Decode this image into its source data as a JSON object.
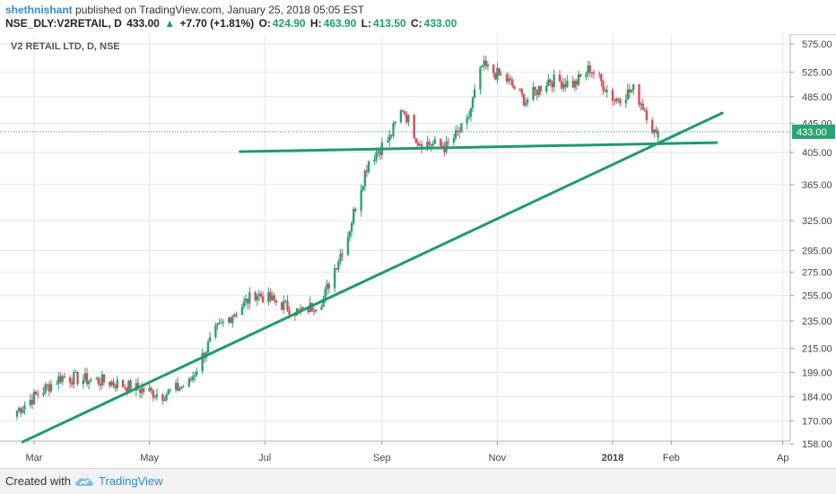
{
  "header": {
    "author": "shethnishant",
    "published_text": "published on TradingView.com, January 25, 2018 05:05 EST",
    "symbol": "NSE_DLY:V2RETAIL, D",
    "last": "433.00",
    "change_arrow": "▲",
    "change": "+7.70 (+1.81%)",
    "open_label": "O:",
    "open": "424.90",
    "high_label": "H:",
    "high": "463.90",
    "low_label": "L:",
    "low": "413.50",
    "close_label": "C:",
    "close": "433.00"
  },
  "footer": {
    "created_with": "Created with",
    "brand": "TradingView",
    "logo_icon": "tradingview-cloud-icon"
  },
  "colors": {
    "up": "#2aa272",
    "down": "#dd4b5b",
    "trendline": "#1f9a72",
    "price_tag": "#2aa272",
    "grid": "#e6e6e6"
  },
  "chart_data": {
    "type": "candlestick",
    "title": "V2 RETAIL LTD, D, NSE",
    "x_tick_labels": [
      "Mar",
      "May",
      "Jul",
      "Sep",
      "Nov",
      "2018",
      "Feb",
      "Ap"
    ],
    "y_tick_labels": [
      "158.00",
      "170.00",
      "184.00",
      "199.00",
      "215.00",
      "235.00",
      "255.00",
      "275.00",
      "295.00",
      "325.00",
      "365.00",
      "405.00",
      "445.00",
      "485.00",
      "525.00",
      "575.00"
    ],
    "y_scale": "log",
    "last_price_label": "433.00",
    "last_price": 433.0,
    "x_start_date": "2017-02-17",
    "x_end_date": "2018-03-28",
    "key_closes": [
      {
        "date": "2017-02-20",
        "close": 176
      },
      {
        "date": "2017-03-15",
        "close": 196
      },
      {
        "date": "2017-04-10",
        "close": 193
      },
      {
        "date": "2017-05-08",
        "close": 185
      },
      {
        "date": "2017-05-22",
        "close": 192
      },
      {
        "date": "2017-06-05",
        "close": 227
      },
      {
        "date": "2017-06-26",
        "close": 257
      },
      {
        "date": "2017-07-20",
        "close": 241
      },
      {
        "date": "2017-08-01",
        "close": 252
      },
      {
        "date": "2017-08-14",
        "close": 310
      },
      {
        "date": "2017-08-25",
        "close": 395
      },
      {
        "date": "2017-09-05",
        "close": 424
      },
      {
        "date": "2017-09-12",
        "close": 467
      },
      {
        "date": "2017-09-20",
        "close": 420
      },
      {
        "date": "2017-10-05",
        "close": 412
      },
      {
        "date": "2017-10-16",
        "close": 445
      },
      {
        "date": "2017-10-24",
        "close": 535
      },
      {
        "date": "2017-11-06",
        "close": 512
      },
      {
        "date": "2017-11-16",
        "close": 478
      },
      {
        "date": "2017-11-28",
        "close": 512
      },
      {
        "date": "2017-12-12",
        "close": 505
      },
      {
        "date": "2017-12-20",
        "close": 532
      },
      {
        "date": "2018-01-02",
        "close": 480
      },
      {
        "date": "2018-01-12",
        "close": 496
      },
      {
        "date": "2018-01-18",
        "close": 466
      },
      {
        "date": "2018-01-24",
        "close": 425
      },
      {
        "date": "2018-01-25",
        "close": 433
      }
    ],
    "trendlines": [
      {
        "name": "rising-support",
        "from": {
          "date": "2017-02-23",
          "price": 159
        },
        "to": {
          "date": "2018-02-28",
          "price": 460
        }
      },
      {
        "name": "horizontal-support",
        "from": {
          "date": "2017-06-18",
          "price": 406
        },
        "to": {
          "date": "2018-02-25",
          "price": 418
        }
      }
    ]
  }
}
